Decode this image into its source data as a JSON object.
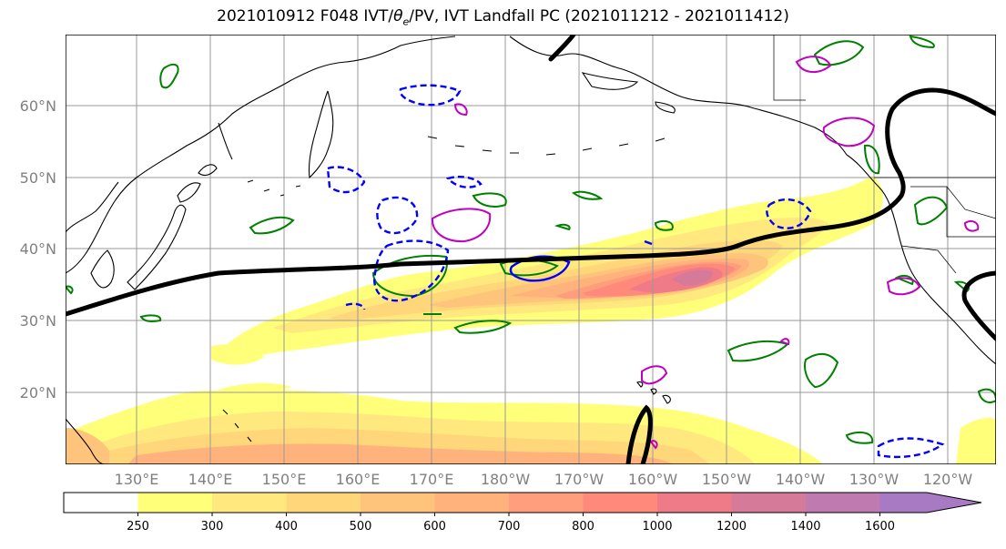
{
  "title": {
    "prefix": "2021010912 F048 IVT/",
    "symbol": "θ",
    "subscript": "e",
    "suffix": "/PV, IVT Landfall PC (2021011212 - 2021011412)"
  },
  "latitude_labels": [
    "20°N",
    "30°N",
    "40°N",
    "50°N",
    "60°N"
  ],
  "longitude_labels": [
    "130°E",
    "140°E",
    "150°E",
    "160°E",
    "170°E",
    "180°W",
    "170°W",
    "160°W",
    "150°W",
    "140°W",
    "130°W",
    "120°W"
  ],
  "colorbar": {
    "ticks": [
      "250",
      "300",
      "400",
      "500",
      "600",
      "700",
      "800",
      "1000",
      "1200",
      "1400",
      "1600"
    ],
    "colors": [
      "#ffffff",
      "#ffff7a",
      "#ffe97f",
      "#ffd67a",
      "#ffc47c",
      "#ffb27c",
      "#ff9e7c",
      "#ff8a7c",
      "#ef7a88",
      "#d67a99",
      "#bf7ab0",
      "#a97ac4"
    ]
  }
}
